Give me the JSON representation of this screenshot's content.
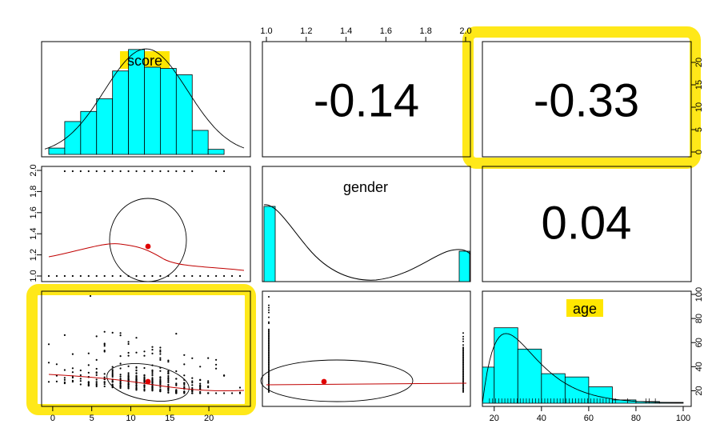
{
  "chart_data": {
    "type": "pairs-panels",
    "variables": [
      "score",
      "gender",
      "age"
    ],
    "correlations": [
      {
        "pair": [
          "score",
          "gender"
        ],
        "label": "-0.14",
        "value": -0.14
      },
      {
        "pair": [
          "score",
          "age"
        ],
        "label": "-0.33",
        "value": -0.33
      },
      {
        "pair": [
          "gender",
          "age"
        ],
        "label": "0.04",
        "value": 0.04
      }
    ],
    "axes": {
      "top": {
        "ticks": [
          "1.0",
          "1.2",
          "1.4",
          "1.6",
          "1.8",
          "2.0"
        ],
        "range": [
          1.0,
          2.0
        ]
      },
      "right_top": {
        "ticks": [
          "0",
          "5",
          "10",
          "15",
          "20"
        ],
        "range": [
          0,
          24
        ]
      },
      "left_middle": {
        "ticks": [
          "1.0",
          "1.2",
          "1.4",
          "1.6",
          "1.8",
          "2.0"
        ],
        "range": [
          1.0,
          2.0
        ]
      },
      "bottom_left": {
        "ticks": [
          "0",
          "5",
          "10",
          "15",
          "20"
        ],
        "range": [
          -0.5,
          24.5
        ]
      },
      "bottom_right": {
        "ticks": [
          "20",
          "40",
          "60",
          "80",
          "100"
        ],
        "range": [
          15,
          100
        ]
      },
      "right_bottom": {
        "ticks": [
          "20",
          "40",
          "60",
          "80",
          "100"
        ],
        "range": [
          15,
          100
        ]
      }
    },
    "histograms": {
      "score": {
        "bin_edges": [
          0,
          2,
          4,
          6,
          8,
          10,
          12,
          14,
          16,
          18,
          20,
          22,
          24
        ],
        "densities": [
          0.005,
          0.026,
          0.034,
          0.044,
          0.066,
          0.083,
          0.069,
          0.068,
          0.063,
          0.019,
          0.004,
          0.0
        ]
      },
      "age": {
        "bin_edges": [
          15,
          20,
          30,
          40,
          50,
          60,
          70,
          80,
          90,
          100
        ],
        "densities": [
          0.022,
          0.046,
          0.033,
          0.018,
          0.016,
          0.01,
          0.002,
          0.001,
          0.0005
        ]
      }
    },
    "annotations": {
      "highlighted_panels": [
        "score-age correlation (-0.33)",
        "score vs age scatter"
      ]
    }
  }
}
